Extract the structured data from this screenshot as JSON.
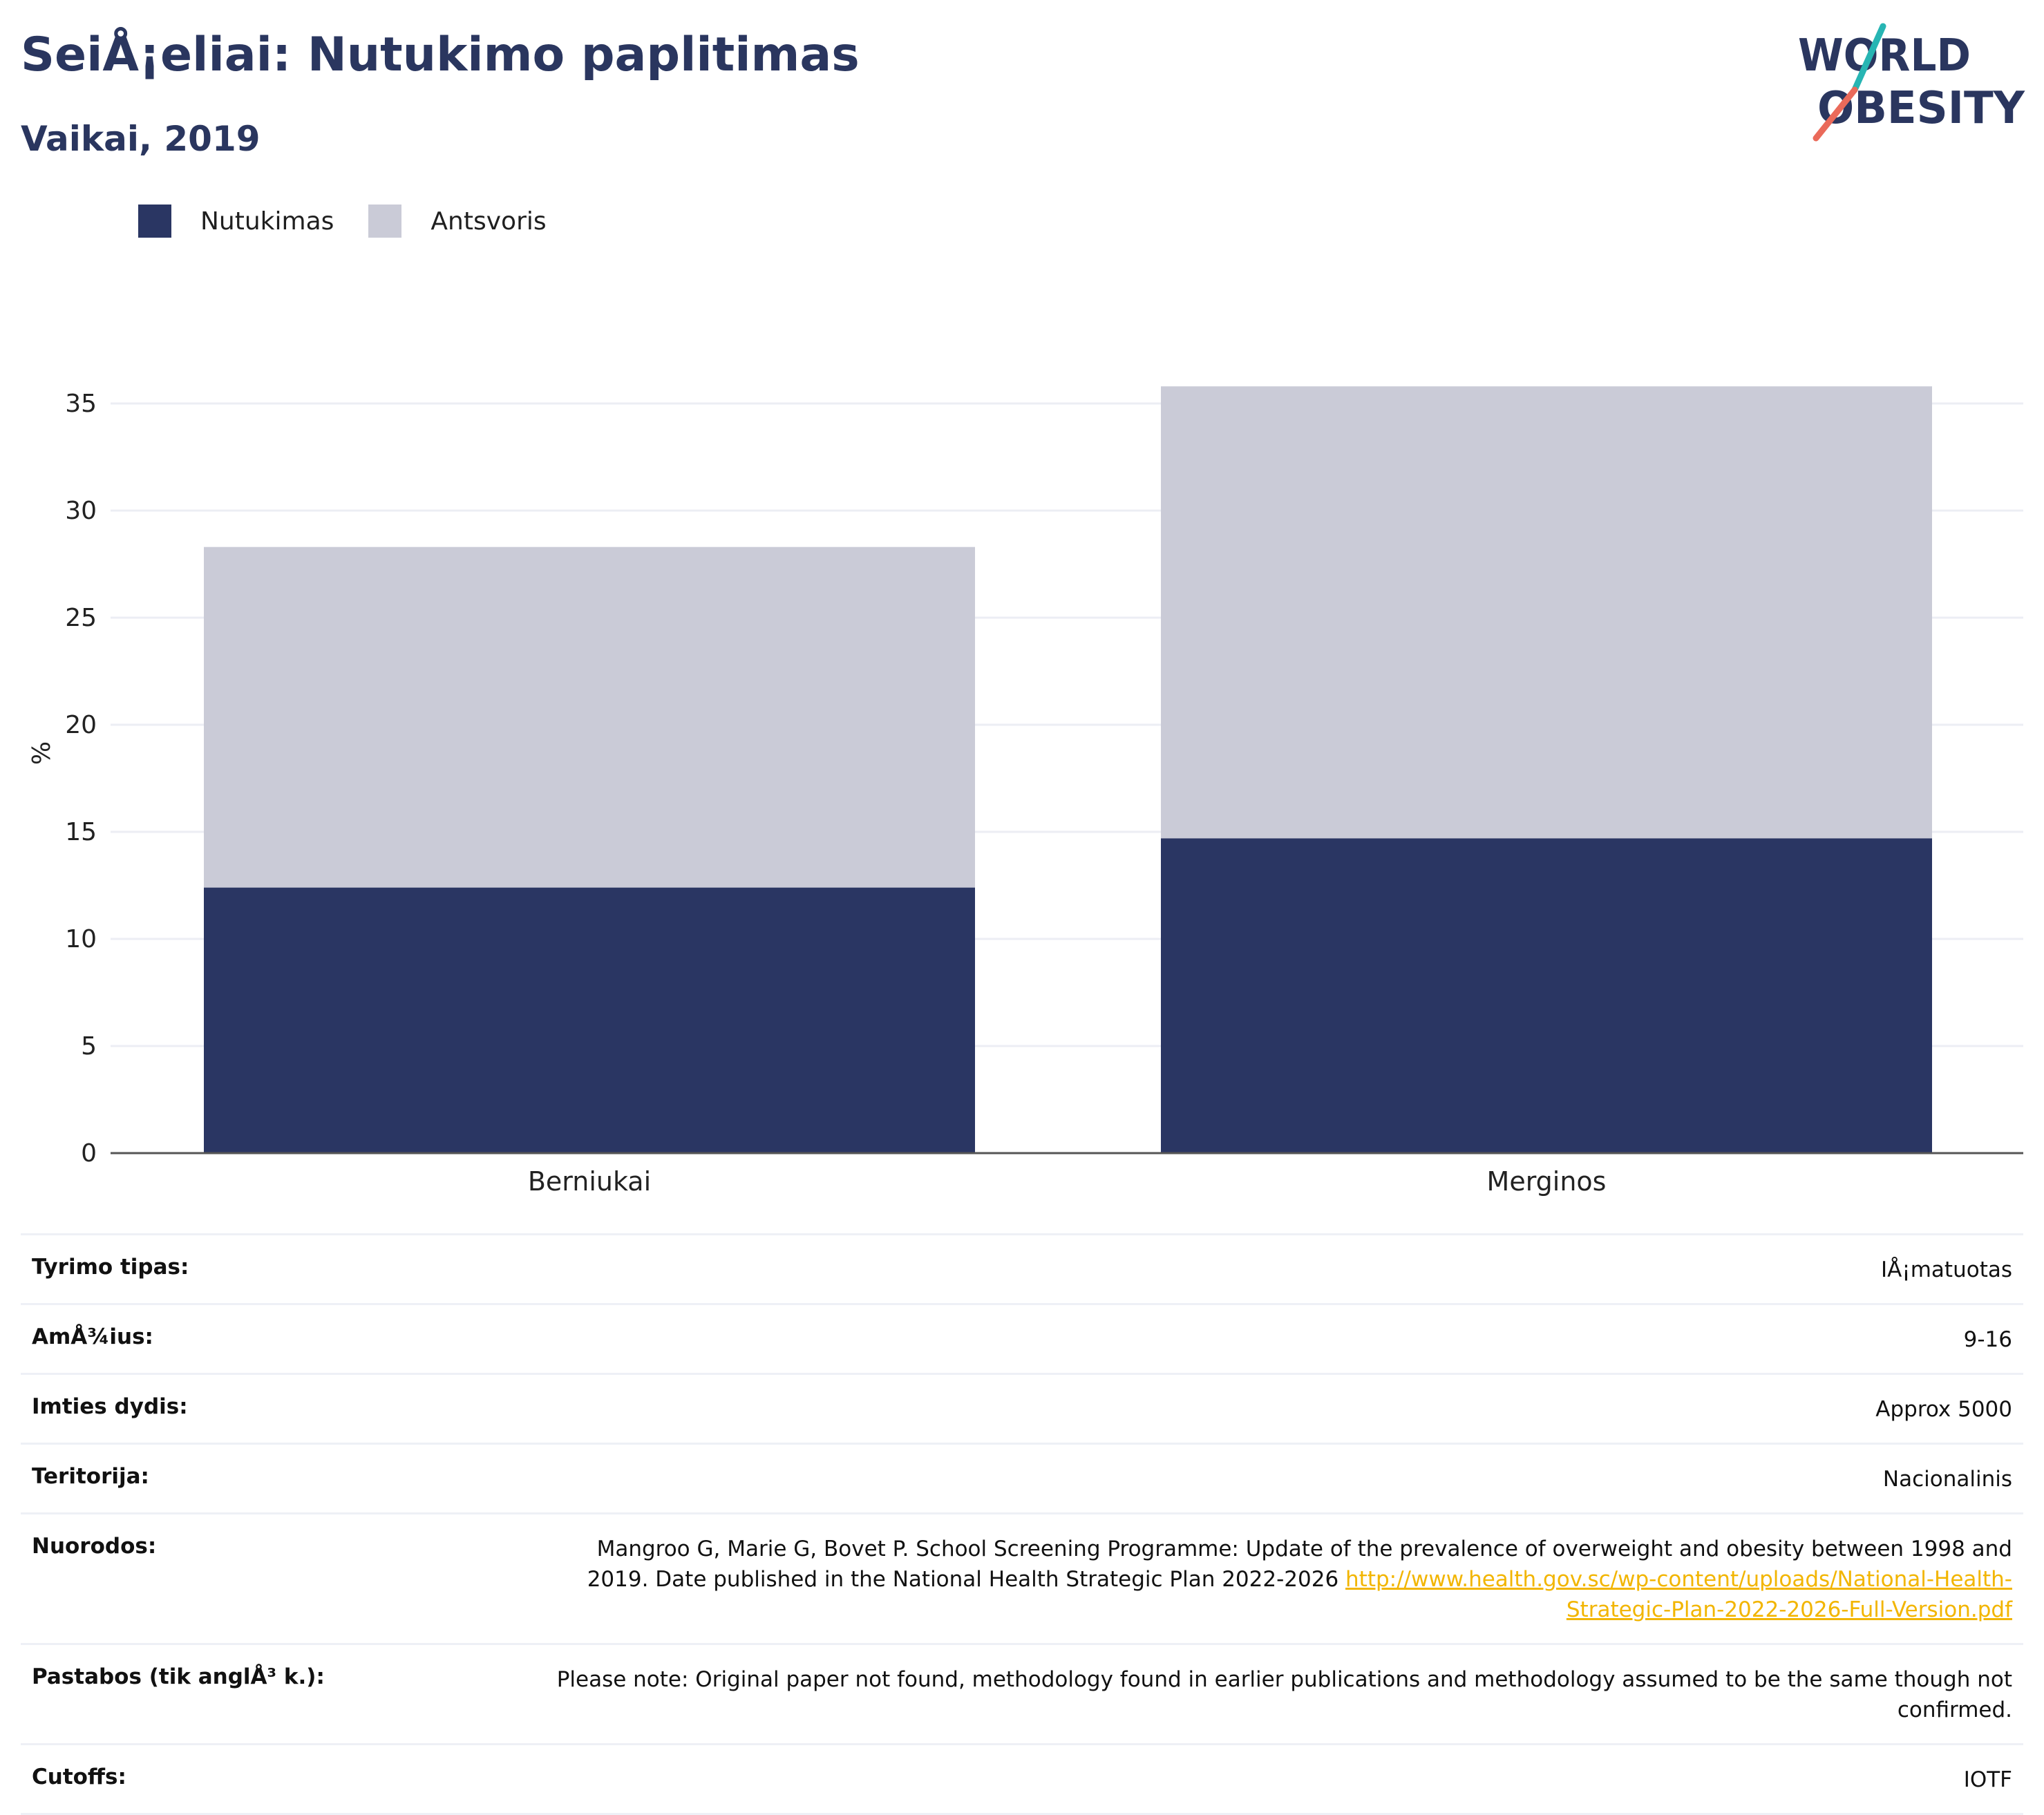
{
  "header": {
    "title": "SeiÅ¡eliai: Nutukimo paplitimas",
    "subtitle": "Vaikai, 2019"
  },
  "logo": {
    "line1": "WORLD",
    "line2": "OBESITY"
  },
  "colors": {
    "obesity": "#2a3663",
    "overweight": "#cacbd7",
    "text": "#2a365f",
    "link": "#f2b500",
    "logo_teal": "#27b5b3",
    "logo_coral": "#ea6a5a"
  },
  "chart_data": {
    "type": "bar",
    "stacked": true,
    "categories": [
      "Berniukai",
      "Merginos"
    ],
    "series": [
      {
        "name": "Nutukimas",
        "values": [
          12.4,
          14.7
        ],
        "color": "#2a3663"
      },
      {
        "name": "Antsvoris",
        "values": [
          15.9,
          21.1
        ],
        "color": "#cacbd7"
      }
    ],
    "totals": [
      28.3,
      35.8
    ],
    "ylabel": "%",
    "ylim": [
      0,
      37
    ],
    "yticks": [
      "0",
      "5",
      "10",
      "15",
      "20",
      "25",
      "30",
      "35"
    ],
    "grid": true,
    "legend_position": "top-left"
  },
  "info": {
    "rows": [
      {
        "label": "Tyrimo tipas:",
        "value": "IÅ¡matuotas"
      },
      {
        "label": "AmÅ¾ius:",
        "value": "9-16"
      },
      {
        "label": "Imties dydis:",
        "value": "Approx 5000"
      },
      {
        "label": "Teritorija:",
        "value": "Nacionalinis"
      },
      {
        "label": "Nuorodos:",
        "value": "Mangroo G, Marie G, Bovet P. School Screening Programme: Update of the prevalence of overweight and obesity between 1998 and 2019. Date published in the National Health Strategic Plan 2022-2026 ",
        "link": "http://www.health.gov.sc/wp-content/uploads/National-Health-Strategic-Plan-2022-2026-Full-Version.pdf"
      },
      {
        "label": "Pastabos (tik anglÅ³ k.):",
        "value": "Please note: Original paper not found, methodology found in earlier publications and methodology assumed to be the same though not confirmed."
      },
      {
        "label": "Cutoffs:",
        "value": "IOTF"
      }
    ]
  }
}
